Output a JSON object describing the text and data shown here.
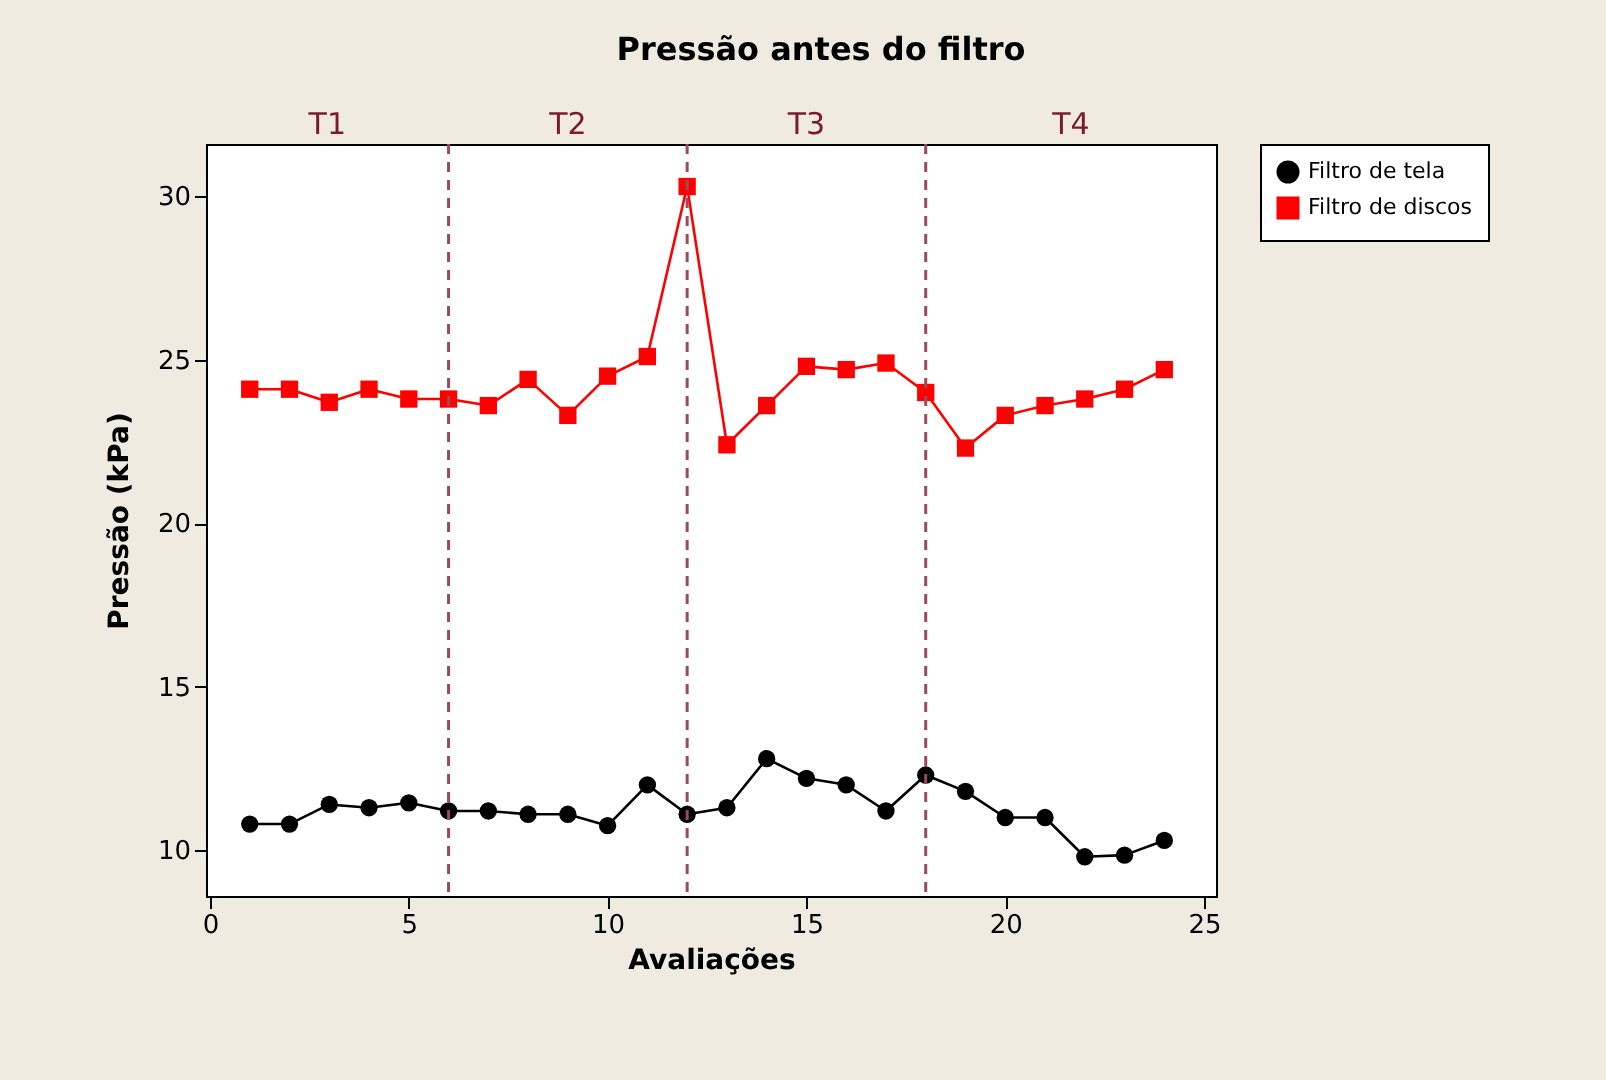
{
  "chart_data": {
    "type": "line",
    "title": "Pressão antes do filtro",
    "xlabel": "Avaliações",
    "ylabel": "Pressão (kPa)",
    "x": [
      1,
      2,
      3,
      4,
      5,
      6,
      7,
      8,
      9,
      10,
      11,
      12,
      13,
      14,
      15,
      16,
      17,
      18,
      19,
      20,
      21,
      22,
      23,
      24
    ],
    "series": [
      {
        "name": "Filtro de tela",
        "color": "#000000",
        "marker": "circle",
        "values": [
          10.8,
          10.8,
          11.4,
          11.3,
          11.45,
          11.2,
          11.2,
          11.1,
          11.1,
          10.75,
          12.0,
          11.1,
          11.3,
          12.8,
          12.2,
          12.0,
          11.2,
          12.3,
          11.8,
          11.0,
          11.0,
          9.8,
          9.85,
          10.3
        ]
      },
      {
        "name": "Filtro de discos",
        "color": "#ff0000",
        "marker": "square",
        "values": [
          24.1,
          24.1,
          23.7,
          24.1,
          23.8,
          23.8,
          23.6,
          24.4,
          23.3,
          24.5,
          25.1,
          30.3,
          22.4,
          23.6,
          24.8,
          24.7,
          24.9,
          24.0,
          22.3,
          23.3,
          23.6,
          23.8,
          24.1,
          24.7
        ]
      }
    ],
    "xlim": [
      -0.1,
      25.3
    ],
    "xticks": [
      0,
      5,
      10,
      15,
      20,
      25
    ],
    "ylim": [
      8.6,
      31.6
    ],
    "yticks": [
      10,
      15,
      20,
      25,
      30
    ],
    "ref_lines": [
      {
        "axis": "x",
        "value": 6,
        "color": "#9b4a5a",
        "line_style": "dashed"
      },
      {
        "axis": "x",
        "value": 12,
        "color": "#9b4a5a",
        "line_style": "dashed"
      },
      {
        "axis": "x",
        "value": 18,
        "color": "#9b4a5a",
        "line_style": "dashed"
      }
    ],
    "annotations": [
      "T1",
      "T2",
      "T3",
      "T4"
    ],
    "legend": "top right",
    "grid": false
  }
}
